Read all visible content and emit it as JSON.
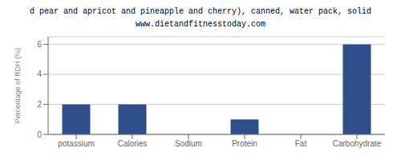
{
  "chart_data": {
    "type": "bar",
    "title": "d pear and apricot and pineapple and cherry), canned, water pack, solid",
    "subtitle": "www.dietandfitnesstoday.com",
    "categories": [
      "potassium",
      "Calories",
      "Sodium",
      "Protein",
      "Fat",
      "Carbohydrate"
    ],
    "values": [
      2.0,
      2.0,
      0.0,
      1.0,
      0.0,
      6.0
    ],
    "color": "#2e4f8c",
    "ylabel": "Percentage of RDH (%)",
    "ylim": [
      0,
      6.5
    ],
    "yticks": [
      0,
      2,
      4,
      6
    ],
    "grid": true
  }
}
